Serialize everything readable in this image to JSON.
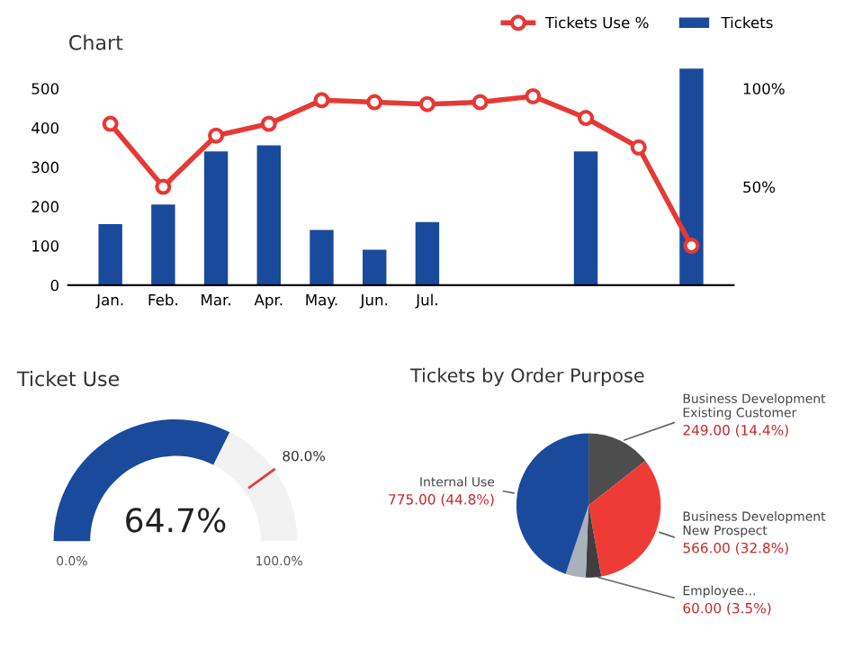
{
  "chart_data": [
    {
      "type": "bar",
      "title": "Chart",
      "categories": [
        "Jan.",
        "Feb.",
        "Mar.",
        "Apr.",
        "May.",
        "Jun.",
        "Jul.",
        null,
        null,
        null,
        null,
        null
      ],
      "series": [
        {
          "name": "Tickets",
          "type": "bar",
          "color": "#1a4a9c",
          "values": [
            155,
            205,
            340,
            355,
            140,
            90,
            160,
            null,
            null,
            340,
            null,
            550
          ]
        },
        {
          "name": "Tickets Use %",
          "type": "line",
          "axis": "y2",
          "color": "#e53935",
          "marker": "circle",
          "values": [
            82,
            50,
            76,
            82,
            94,
            93,
            92,
            93,
            96,
            85,
            70,
            20
          ]
        }
      ],
      "ylim": [
        0,
        560
      ],
      "yticks": [
        0,
        100,
        200,
        300,
        400,
        500
      ],
      "y2lim": [
        0,
        112
      ],
      "y2ticks": [
        {
          "value": 50,
          "label": "50%"
        },
        {
          "value": 100,
          "label": "100%"
        }
      ],
      "legend": "top right",
      "grid": false
    },
    {
      "type": "donut",
      "title": "Ticket Use",
      "categories": [
        null,
        null
      ],
      "values": [
        64.7,
        35.3
      ],
      "colors": [
        "#1a4a9c",
        "#f2f2f2"
      ],
      "value_labels": [
        "64.7%",
        null
      ],
      "annotations": [
        "0.0%",
        "100.0%",
        "80.0%"
      ]
    },
    {
      "type": "pie",
      "title": "Tickets by Order Purpose",
      "categories": [
        "Business Development\nExisting Customer",
        "Business Development\nNew Prospect",
        "Employee...",
        null,
        "Internal Use"
      ],
      "values": [
        249,
        566,
        60,
        78,
        775
      ],
      "colors": [
        "#4d4d4d",
        "#ef3b36",
        "#3f3f3f",
        "#a9b1bb",
        "#1a4a9c"
      ],
      "value_labels": [
        "249.00 (14.4%)",
        "566.00 (32.8%)",
        "60.00 (3.5%)",
        null,
        "775.00 (44.8%)"
      ]
    }
  ]
}
